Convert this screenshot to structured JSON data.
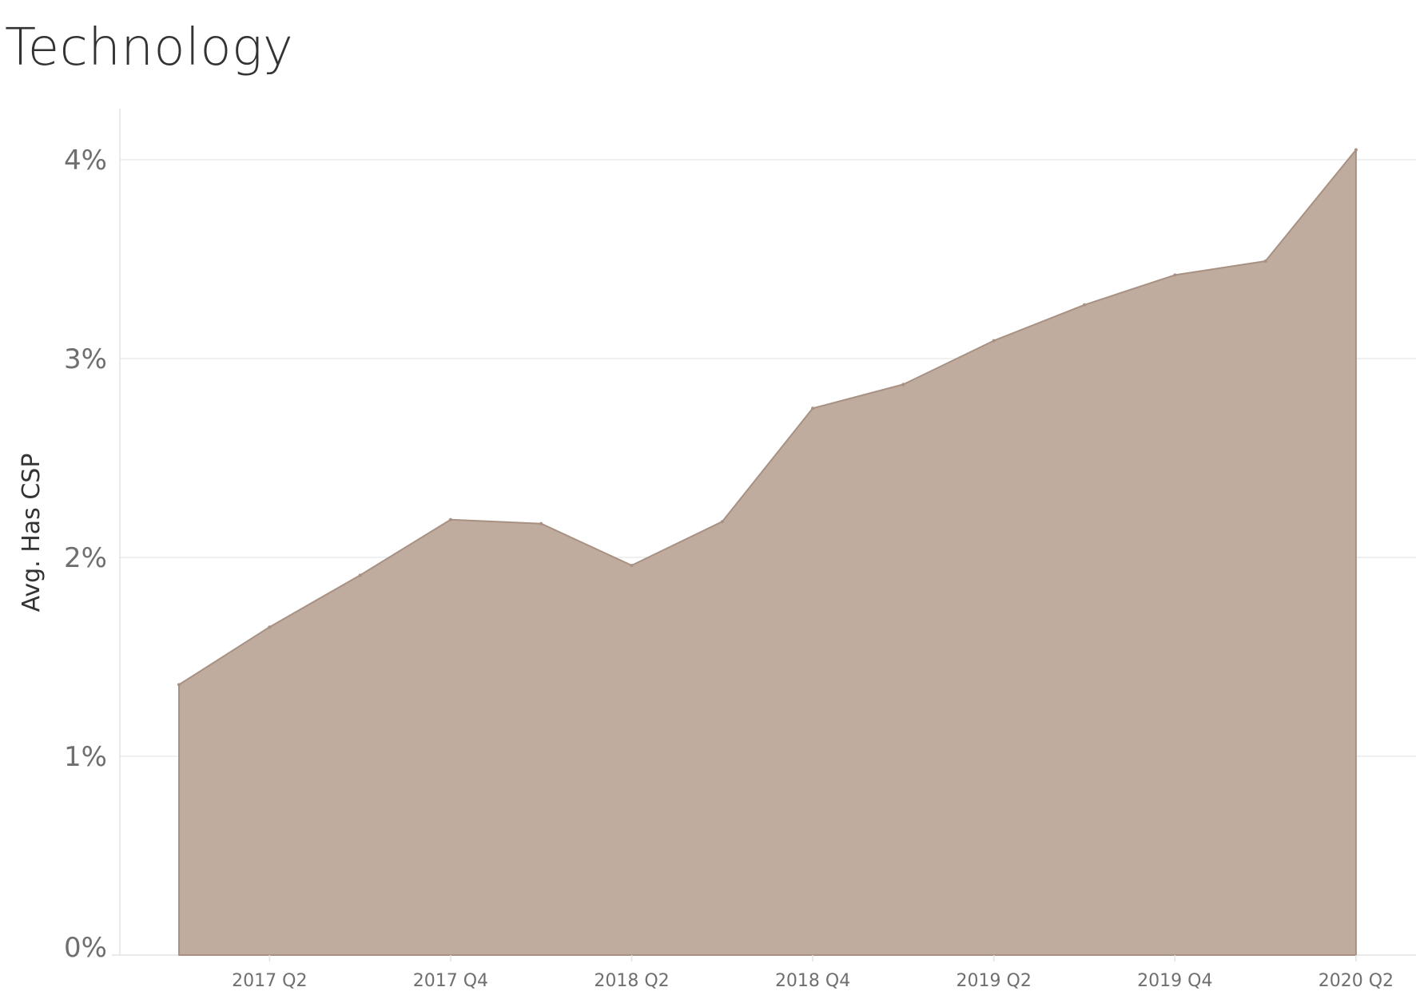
{
  "chart_data": {
    "type": "area",
    "title": "Technology",
    "xlabel": "",
    "ylabel": "Avg. Has CSP",
    "x": [
      "2017 Q1",
      "2017 Q2",
      "2017 Q3",
      "2017 Q4",
      "2018 Q1",
      "2018 Q2",
      "2018 Q3",
      "2018 Q4",
      "2019 Q1",
      "2019 Q2",
      "2019 Q3",
      "2019 Q4",
      "2020 Q1",
      "2020 Q2"
    ],
    "x_tick_labels": [
      "2017 Q2",
      "2017 Q4",
      "2018 Q2",
      "2018 Q4",
      "2019 Q2",
      "2019 Q4",
      "2020 Q2"
    ],
    "values": [
      1.36,
      1.65,
      1.91,
      2.19,
      2.17,
      1.96,
      2.18,
      2.75,
      2.87,
      3.09,
      3.27,
      3.42,
      3.49,
      4.05
    ],
    "y_unit": "%",
    "ylim": [
      0,
      4.25
    ],
    "y_ticks": [
      {
        "value": 0,
        "label": "0%"
      },
      {
        "value": 1,
        "label": "1%"
      },
      {
        "value": 2,
        "label": "2%"
      },
      {
        "value": 3,
        "label": "3%"
      },
      {
        "value": 4,
        "label": "4%"
      }
    ],
    "grid": true,
    "colors": {
      "fill": "#bfac9e",
      "line": "#a89182",
      "grid": "#ececec",
      "axis": "#e3e3e3"
    }
  }
}
